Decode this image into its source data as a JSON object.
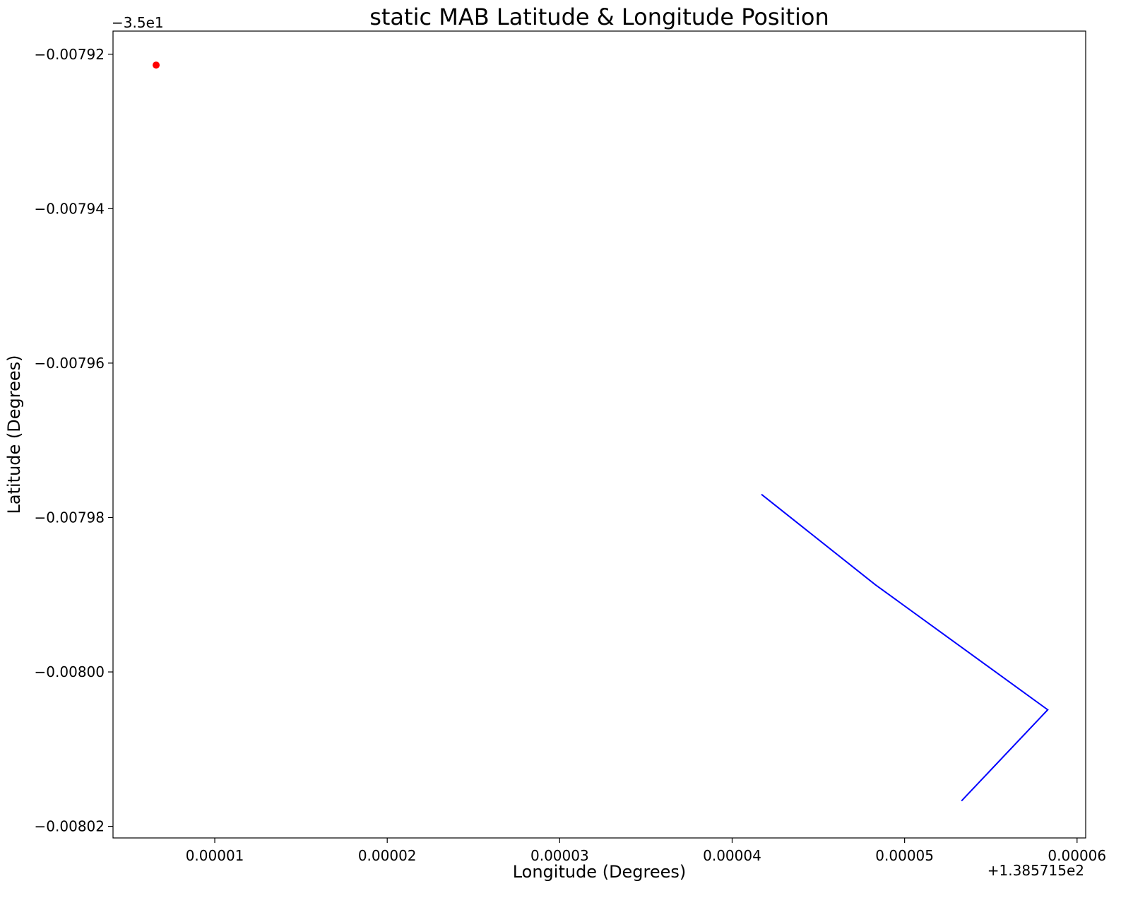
{
  "chart_data": {
    "type": "scatter",
    "title": "static MAB Latitude & Longitude Position",
    "xlabel": "Longitude (Degrees)",
    "ylabel": "Latitude (Degrees)",
    "x_offset_label": "+1.385715e2",
    "y_offset_label": "−3.5e1",
    "xlim": [
      4.1e-06,
      6.05e-05
    ],
    "ylim": [
      -0.0080215,
      -0.007917
    ],
    "x_ticks": [
      1e-05,
      2e-05,
      3e-05,
      4e-05,
      5e-05,
      6e-05
    ],
    "x_tick_labels": [
      "0.00001",
      "0.00002",
      "0.00003",
      "0.00004",
      "0.00005",
      "0.00006"
    ],
    "y_ticks": [
      -0.00792,
      -0.00794,
      -0.00796,
      -0.00798,
      -0.008,
      -0.00802
    ],
    "y_tick_labels": [
      "−0.00792",
      "−0.00794",
      "−0.00796",
      "−0.00798",
      "−0.00800",
      "−0.00802"
    ],
    "grid": false,
    "series": [
      {
        "type": "line",
        "color": "#0000ff",
        "x": [
          4.17e-05,
          4.83e-05,
          5.83e-05,
          5.33e-05
        ],
        "y": [
          -0.007977,
          -0.0079887,
          -0.0080049,
          -0.0080167
        ]
      },
      {
        "type": "scatter",
        "color": "#ff0000",
        "x": [
          6.6e-06
        ],
        "y": [
          -0.0079214
        ]
      }
    ]
  }
}
